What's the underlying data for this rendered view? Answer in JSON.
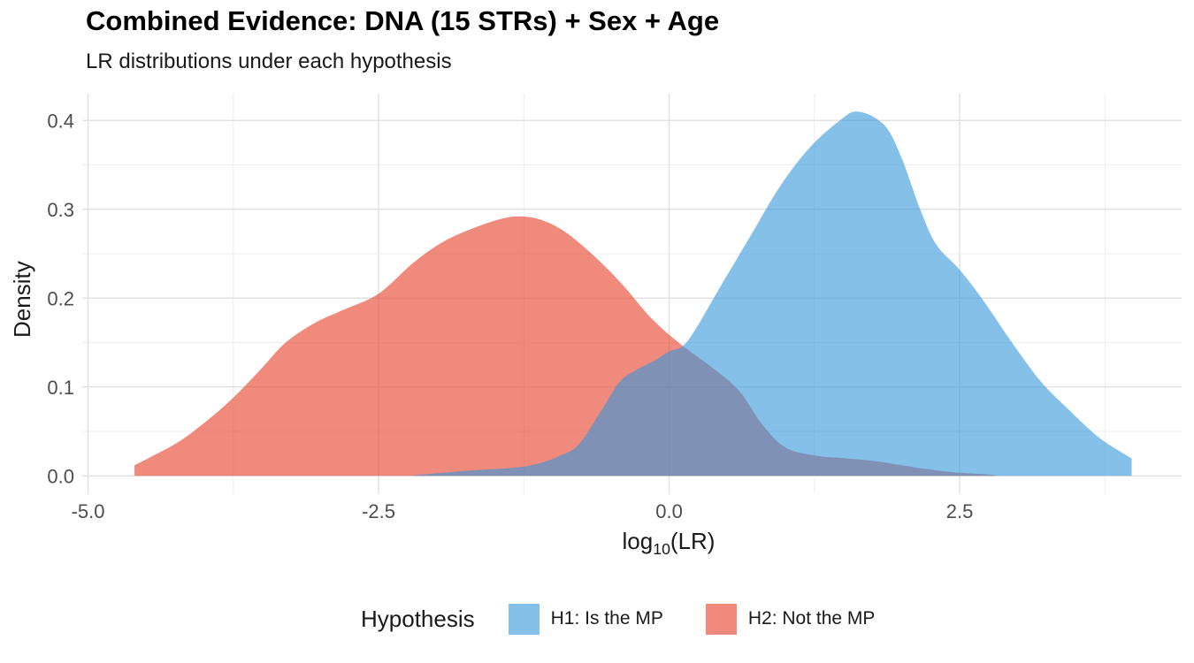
{
  "title": "Combined Evidence: DNA (15 STRs) + Sex + Age",
  "subtitle": "LR distributions under each hypothesis",
  "chart_data": {
    "type": "area",
    "title": "Combined Evidence: DNA (15 STRs) + Sex + Age",
    "subtitle": "LR distributions under each hypothesis",
    "xlabel_pre": "log",
    "xlabel_sub": "10",
    "xlabel_post": "(LR)",
    "ylabel": "Density",
    "legend_title": "Hypothesis",
    "legend_position": "bottom",
    "grid": "major and minor gridlines on white background",
    "xlim": [
      -5.05,
      4.41
    ],
    "ylim": [
      -0.0206,
      0.4301
    ],
    "x_ticks": [
      {
        "value": -5.0,
        "label": "-5.0"
      },
      {
        "value": -2.5,
        "label": "-2.5"
      },
      {
        "value": 0.0,
        "label": "0.0"
      },
      {
        "value": 2.5,
        "label": "2.5"
      }
    ],
    "y_ticks": [
      {
        "value": 0.0,
        "label": "0.0"
      },
      {
        "value": 0.1,
        "label": "0.1"
      },
      {
        "value": 0.2,
        "label": "0.2"
      },
      {
        "value": 0.3,
        "label": "0.3"
      },
      {
        "value": 0.4,
        "label": "0.4"
      }
    ],
    "x_minor_ticks": [
      -3.75,
      -1.25,
      1.25,
      3.75
    ],
    "y_minor_ticks": [
      0.05,
      0.15,
      0.25,
      0.35
    ],
    "colors": {
      "grid_major": "#e2e2e2",
      "grid_minor": "#efefef",
      "tick_text": "#4d4d4d",
      "axis_title_text": "#1a1a1a",
      "blue_composite": "#85C0E9",
      "red_composite": "#EF8A7C",
      "overlap_composite": "#8290B8"
    },
    "series": [
      {
        "name": "H1: Is the MP",
        "legend_color": "#85C0E9",
        "fill_rgb": "55,152,219",
        "fill_opacity": 0.61,
        "peak": [
          1.62,
          0.41
        ],
        "points": [
          [
            -2.2,
            0.0005
          ],
          [
            -1.9,
            0.004
          ],
          [
            -1.6,
            0.007
          ],
          [
            -1.35,
            0.009
          ],
          [
            -1.15,
            0.013
          ],
          [
            -0.95,
            0.022
          ],
          [
            -0.78,
            0.035
          ],
          [
            -0.6,
            0.07
          ],
          [
            -0.43,
            0.105
          ],
          [
            -0.3,
            0.118
          ],
          [
            -0.15,
            0.128
          ],
          [
            0.0,
            0.14
          ],
          [
            0.16,
            0.152
          ],
          [
            0.45,
            0.215
          ],
          [
            0.7,
            0.27
          ],
          [
            0.95,
            0.325
          ],
          [
            1.2,
            0.368
          ],
          [
            1.45,
            0.398
          ],
          [
            1.62,
            0.41
          ],
          [
            1.85,
            0.395
          ],
          [
            2.0,
            0.358
          ],
          [
            2.16,
            0.3
          ],
          [
            2.3,
            0.26
          ],
          [
            2.5,
            0.232
          ],
          [
            2.7,
            0.198
          ],
          [
            2.95,
            0.15
          ],
          [
            3.2,
            0.106
          ],
          [
            3.45,
            0.073
          ],
          [
            3.7,
            0.043
          ],
          [
            3.95,
            0.022
          ],
          [
            3.98,
            0.02
          ]
        ]
      },
      {
        "name": "H2: Not the MP",
        "legend_color": "#EF8A7C",
        "fill_rgb": "230,75,53",
        "fill_opacity": 0.65,
        "peak": [
          -1.28,
          0.292
        ],
        "points": [
          [
            -4.6,
            0.012
          ],
          [
            -4.45,
            0.022
          ],
          [
            -4.2,
            0.04
          ],
          [
            -3.95,
            0.065
          ],
          [
            -3.75,
            0.088
          ],
          [
            -3.5,
            0.122
          ],
          [
            -3.3,
            0.15
          ],
          [
            -3.05,
            0.172
          ],
          [
            -2.8,
            0.187
          ],
          [
            -2.5,
            0.205
          ],
          [
            -2.2,
            0.24
          ],
          [
            -1.95,
            0.263
          ],
          [
            -1.7,
            0.278
          ],
          [
            -1.45,
            0.289
          ],
          [
            -1.28,
            0.292
          ],
          [
            -1.1,
            0.288
          ],
          [
            -0.9,
            0.275
          ],
          [
            -0.65,
            0.248
          ],
          [
            -0.4,
            0.215
          ],
          [
            -0.15,
            0.177
          ],
          [
            0.1,
            0.148
          ],
          [
            0.35,
            0.124
          ],
          [
            0.6,
            0.096
          ],
          [
            0.8,
            0.058
          ],
          [
            1.0,
            0.032
          ],
          [
            1.25,
            0.023
          ],
          [
            1.5,
            0.02
          ],
          [
            1.75,
            0.017
          ],
          [
            2.0,
            0.012
          ],
          [
            2.2,
            0.008
          ],
          [
            2.45,
            0.004
          ],
          [
            2.7,
            0.002
          ],
          [
            2.8,
            0.001
          ]
        ]
      }
    ]
  }
}
